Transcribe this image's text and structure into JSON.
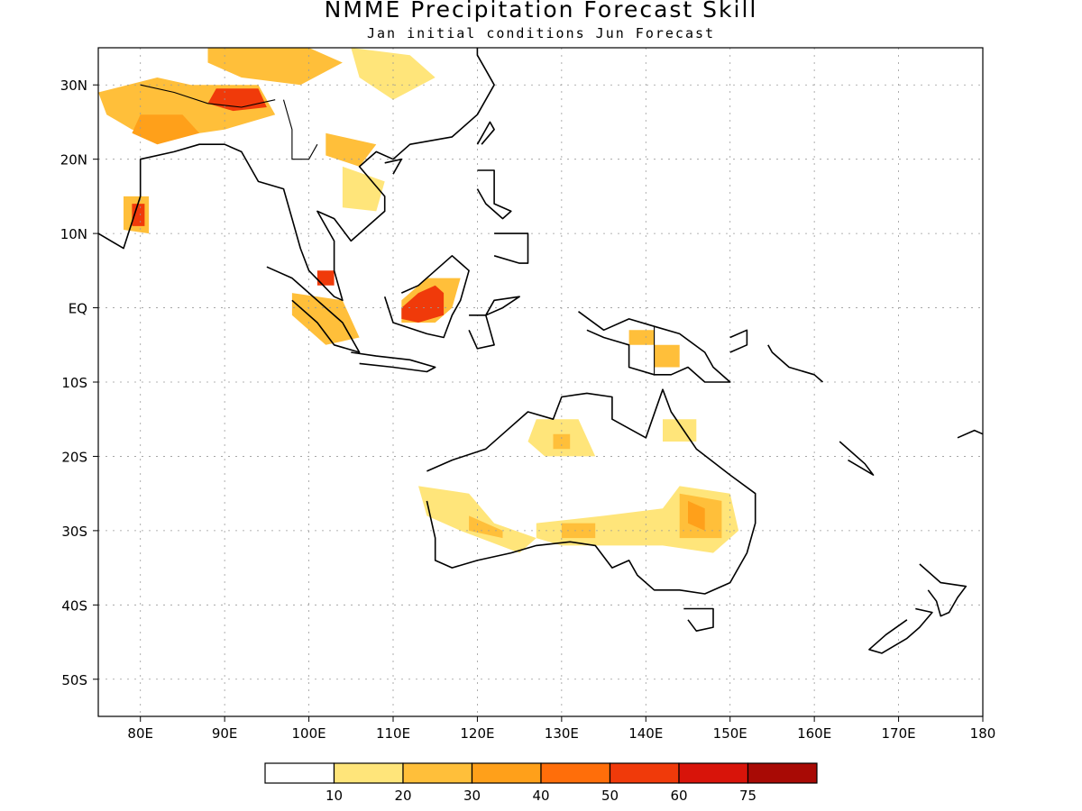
{
  "title": "NMME Precipitation Forecast Skill",
  "subtitle": "Jan initial conditions  Jun Forecast",
  "map": {
    "lon_range": [
      75,
      180
    ],
    "lat_range": [
      -55,
      35
    ],
    "lon_ticks": [
      {
        "value": 80,
        "label": "80E"
      },
      {
        "value": 90,
        "label": "90E"
      },
      {
        "value": 100,
        "label": "100E"
      },
      {
        "value": 110,
        "label": "110E"
      },
      {
        "value": 120,
        "label": "120E"
      },
      {
        "value": 130,
        "label": "130E"
      },
      {
        "value": 140,
        "label": "140E"
      },
      {
        "value": 150,
        "label": "150E"
      },
      {
        "value": 160,
        "label": "160E"
      },
      {
        "value": 170,
        "label": "170E"
      },
      {
        "value": 180,
        "label": "180"
      }
    ],
    "lat_ticks": [
      {
        "value": 30,
        "label": "30N"
      },
      {
        "value": 20,
        "label": "20N"
      },
      {
        "value": 10,
        "label": "10N"
      },
      {
        "value": 0,
        "label": "EQ"
      },
      {
        "value": -10,
        "label": "10S"
      },
      {
        "value": -20,
        "label": "20S"
      },
      {
        "value": -30,
        "label": "30S"
      },
      {
        "value": -40,
        "label": "40S"
      },
      {
        "value": -50,
        "label": "50S"
      }
    ],
    "grid": true
  },
  "colorbar": {
    "colors": [
      "#ffffff",
      "#ffe57a",
      "#ffbf3a",
      "#ffa01a",
      "#ff6e0a",
      "#f03a0a",
      "#d8140a",
      "#a80a05"
    ],
    "labels": [
      "10",
      "20",
      "30",
      "40",
      "50",
      "60",
      "75"
    ]
  },
  "skill_regions": [
    {
      "level": 2,
      "points": [
        [
          75,
          29
        ],
        [
          82,
          31
        ],
        [
          86,
          30
        ],
        [
          94,
          30
        ],
        [
          96,
          26
        ],
        [
          90,
          24
        ],
        [
          84,
          23
        ],
        [
          79,
          24
        ],
        [
          76,
          26
        ]
      ]
    },
    {
      "level": 3,
      "points": [
        [
          80,
          26
        ],
        [
          85,
          26
        ],
        [
          87,
          23.5
        ],
        [
          82,
          22
        ],
        [
          79,
          23.5
        ]
      ]
    },
    {
      "level": 5,
      "points": [
        [
          89,
          29.5
        ],
        [
          94,
          29.5
        ],
        [
          95,
          27
        ],
        [
          91,
          26.5
        ],
        [
          88,
          27.5
        ]
      ]
    },
    {
      "level": 2,
      "points": [
        [
          88,
          35
        ],
        [
          100,
          35
        ],
        [
          104,
          33
        ],
        [
          99,
          30
        ],
        [
          92,
          31
        ],
        [
          88,
          33
        ]
      ]
    },
    {
      "level": 1,
      "points": [
        [
          105,
          35
        ],
        [
          112,
          34
        ],
        [
          115,
          31
        ],
        [
          110,
          28
        ],
        [
          106,
          31
        ]
      ]
    },
    {
      "level": 2,
      "points": [
        [
          102,
          23.5
        ],
        [
          108,
          22
        ],
        [
          106,
          19
        ],
        [
          102,
          20.5
        ]
      ]
    },
    {
      "level": 1,
      "points": [
        [
          104,
          19
        ],
        [
          109,
          17
        ],
        [
          108,
          13
        ],
        [
          104,
          13.5
        ]
      ]
    },
    {
      "level": 2,
      "points": [
        [
          78,
          15
        ],
        [
          81,
          15
        ],
        [
          81,
          10
        ],
        [
          78,
          10.5
        ]
      ]
    },
    {
      "level": 5,
      "points": [
        [
          79,
          14
        ],
        [
          80.5,
          14
        ],
        [
          80.5,
          11
        ],
        [
          79,
          11
        ]
      ]
    },
    {
      "level": 5,
      "points": [
        [
          101,
          5
        ],
        [
          103,
          5
        ],
        [
          103,
          3
        ],
        [
          101,
          3
        ]
      ]
    },
    {
      "level": 2,
      "points": [
        [
          98,
          2
        ],
        [
          104,
          1
        ],
        [
          106,
          -4
        ],
        [
          102,
          -5
        ],
        [
          98,
          -1
        ]
      ]
    },
    {
      "level": 2,
      "points": [
        [
          111,
          1
        ],
        [
          114,
          4
        ],
        [
          118,
          4
        ],
        [
          117,
          0
        ],
        [
          115,
          -2
        ],
        [
          111,
          -2
        ]
      ]
    },
    {
      "level": 5,
      "points": [
        [
          111,
          0
        ],
        [
          113,
          2
        ],
        [
          115,
          3
        ],
        [
          116,
          2
        ],
        [
          116,
          -1
        ],
        [
          113,
          -2
        ],
        [
          111,
          -1.5
        ]
      ]
    },
    {
      "level": 2,
      "points": [
        [
          138,
          -3
        ],
        [
          141,
          -3
        ],
        [
          141,
          -5
        ],
        [
          138,
          -5
        ]
      ]
    },
    {
      "level": 2,
      "points": [
        [
          141,
          -5
        ],
        [
          144,
          -5
        ],
        [
          144,
          -8
        ],
        [
          141,
          -8
        ]
      ]
    },
    {
      "level": 1,
      "points": [
        [
          127,
          -15
        ],
        [
          132,
          -15
        ],
        [
          134,
          -20
        ],
        [
          128,
          -20
        ],
        [
          126,
          -18
        ]
      ]
    },
    {
      "level": 2,
      "points": [
        [
          129,
          -17
        ],
        [
          131,
          -17
        ],
        [
          131,
          -19
        ],
        [
          129,
          -19
        ]
      ]
    },
    {
      "level": 1,
      "points": [
        [
          142,
          -15
        ],
        [
          146,
          -15
        ],
        [
          146,
          -18
        ],
        [
          142,
          -18
        ]
      ]
    },
    {
      "level": 1,
      "points": [
        [
          113,
          -24
        ],
        [
          119,
          -25
        ],
        [
          122,
          -29
        ],
        [
          127,
          -31
        ],
        [
          125,
          -33
        ],
        [
          118,
          -30
        ],
        [
          114,
          -28
        ]
      ]
    },
    {
      "level": 2,
      "points": [
        [
          119,
          -28
        ],
        [
          123,
          -30
        ],
        [
          123,
          -31
        ],
        [
          119,
          -30
        ]
      ]
    },
    {
      "level": 1,
      "points": [
        [
          127,
          -29
        ],
        [
          135,
          -28
        ],
        [
          142,
          -27
        ],
        [
          144,
          -24
        ],
        [
          150,
          -25
        ],
        [
          151,
          -30
        ],
        [
          148,
          -33
        ],
        [
          142,
          -32
        ],
        [
          136,
          -32
        ],
        [
          130,
          -32
        ],
        [
          127,
          -31
        ]
      ]
    },
    {
      "level": 2,
      "points": [
        [
          130,
          -29
        ],
        [
          134,
          -29
        ],
        [
          134,
          -31
        ],
        [
          130,
          -31
        ]
      ]
    },
    {
      "level": 2,
      "points": [
        [
          144,
          -25
        ],
        [
          149,
          -26
        ],
        [
          149,
          -31
        ],
        [
          144,
          -31
        ]
      ]
    },
    {
      "level": 3,
      "points": [
        [
          145,
          -26
        ],
        [
          147,
          -27
        ],
        [
          147,
          -30
        ],
        [
          145,
          -29
        ]
      ]
    }
  ],
  "coastlines": [
    [
      [
        75,
        10
      ],
      [
        78,
        8
      ],
      [
        80,
        15
      ],
      [
        80,
        20
      ],
      [
        84,
        21
      ],
      [
        87,
        22
      ],
      [
        88,
        22
      ],
      [
        90,
        22
      ],
      [
        92,
        21
      ],
      [
        94,
        17
      ],
      [
        97,
        16
      ],
      [
        98,
        12
      ],
      [
        99,
        8
      ],
      [
        100,
        5
      ],
      [
        103,
        1.5
      ],
      [
        104,
        1
      ],
      [
        103,
        5
      ],
      [
        103,
        9
      ],
      [
        101,
        13
      ],
      [
        103,
        12
      ],
      [
        105,
        9
      ],
      [
        107,
        11
      ],
      [
        109,
        13
      ],
      [
        109,
        15
      ],
      [
        106,
        19
      ],
      [
        108,
        21
      ],
      [
        110,
        20
      ],
      [
        112,
        22
      ],
      [
        117,
        23
      ],
      [
        120,
        26
      ],
      [
        122,
        30
      ],
      [
        121,
        32
      ],
      [
        120,
        34
      ],
      [
        120,
        35
      ]
    ],
    [
      [
        95,
        5.5
      ],
      [
        98,
        4
      ],
      [
        102,
        0
      ],
      [
        104,
        -2
      ],
      [
        106,
        -6
      ],
      [
        103,
        -5
      ],
      [
        101,
        -2
      ],
      [
        98,
        1
      ]
    ],
    [
      [
        105,
        -6
      ],
      [
        108,
        -6.5
      ],
      [
        112,
        -7
      ],
      [
        115,
        -8
      ],
      [
        114,
        -8.6
      ],
      [
        110,
        -8
      ],
      [
        106,
        -7.5
      ]
    ],
    [
      [
        109,
        1.5
      ],
      [
        110,
        -2
      ],
      [
        114,
        -3.5
      ],
      [
        116,
        -4
      ],
      [
        117,
        -1
      ],
      [
        118,
        1
      ],
      [
        119,
        5
      ],
      [
        117,
        7
      ],
      [
        115,
        5
      ],
      [
        113,
        3
      ],
      [
        111,
        2
      ]
    ],
    [
      [
        119,
        -1
      ],
      [
        121,
        -1
      ],
      [
        122,
        1
      ],
      [
        125,
        1.5
      ],
      [
        123,
        0
      ],
      [
        121,
        -1
      ],
      [
        122,
        -5
      ],
      [
        120,
        -5.5
      ],
      [
        119,
        -3
      ]
    ],
    [
      [
        120,
        18.5
      ],
      [
        122,
        18.5
      ],
      [
        122,
        14
      ],
      [
        124,
        13
      ],
      [
        123,
        12
      ],
      [
        121,
        14
      ],
      [
        120,
        16
      ]
    ],
    [
      [
        122,
        10
      ],
      [
        126,
        10
      ],
      [
        126,
        6
      ],
      [
        125,
        6
      ],
      [
        122,
        7
      ]
    ],
    [
      [
        120,
        22
      ],
      [
        121.5,
        25
      ],
      [
        122,
        24
      ],
      [
        120.5,
        22
      ]
    ],
    [
      [
        110,
        18
      ],
      [
        111,
        20
      ],
      [
        109,
        19.5
      ]
    ],
    [
      [
        132,
        -0.5
      ],
      [
        135,
        -3
      ],
      [
        138,
        -1.5
      ],
      [
        141,
        -2.5
      ],
      [
        144,
        -3.5
      ],
      [
        147,
        -6
      ],
      [
        148,
        -8
      ],
      [
        150,
        -10
      ],
      [
        147,
        -10
      ],
      [
        145,
        -8
      ],
      [
        143,
        -9
      ],
      [
        141,
        -9
      ],
      [
        138,
        -8
      ],
      [
        138,
        -5
      ],
      [
        135,
        -4
      ],
      [
        133,
        -3
      ]
    ],
    [
      [
        150,
        -4
      ],
      [
        152,
        -3
      ],
      [
        152,
        -5
      ],
      [
        150,
        -6
      ]
    ],
    [
      [
        114,
        -22
      ],
      [
        117,
        -20.5
      ],
      [
        121,
        -19
      ],
      [
        123,
        -17
      ],
      [
        126,
        -14
      ],
      [
        129,
        -15
      ],
      [
        130,
        -12
      ],
      [
        133,
        -11.5
      ],
      [
        136,
        -12
      ],
      [
        136,
        -15
      ],
      [
        140,
        -17.5
      ],
      [
        142,
        -11
      ],
      [
        143,
        -14
      ],
      [
        146,
        -19
      ],
      [
        150,
        -22.5
      ],
      [
        153,
        -25
      ],
      [
        153,
        -29
      ],
      [
        152,
        -33
      ],
      [
        150,
        -37
      ],
      [
        147,
        -38.5
      ],
      [
        144,
        -38
      ],
      [
        141,
        -38
      ],
      [
        139,
        -36
      ],
      [
        138,
        -34
      ],
      [
        136,
        -35
      ],
      [
        134,
        -32
      ],
      [
        131,
        -31.5
      ],
      [
        127,
        -32
      ],
      [
        124,
        -33
      ],
      [
        120,
        -34
      ],
      [
        117,
        -35
      ],
      [
        115,
        -34
      ],
      [
        115,
        -31
      ],
      [
        114,
        -26
      ]
    ],
    [
      [
        144.5,
        -40.5
      ],
      [
        148,
        -40.5
      ],
      [
        148,
        -43
      ],
      [
        146,
        -43.5
      ],
      [
        145,
        -42
      ]
    ],
    [
      [
        172.5,
        -34.5
      ],
      [
        175,
        -37
      ],
      [
        178,
        -37.5
      ],
      [
        177,
        -39
      ],
      [
        176,
        -41
      ],
      [
        175,
        -41.5
      ],
      [
        174.5,
        -39.5
      ],
      [
        173.5,
        -38
      ]
    ],
    [
      [
        172,
        -40.5
      ],
      [
        174,
        -41
      ],
      [
        172.5,
        -43
      ],
      [
        171,
        -44.5
      ],
      [
        168,
        -46.5
      ],
      [
        166.5,
        -46
      ],
      [
        168.5,
        -44
      ],
      [
        171,
        -42
      ]
    ],
    [
      [
        163,
        -18
      ],
      [
        166,
        -21
      ],
      [
        167,
        -22.5
      ],
      [
        164,
        -20.5
      ]
    ],
    [
      [
        177,
        -17.5
      ],
      [
        179,
        -16.5
      ],
      [
        180,
        -17
      ]
    ],
    [
      [
        154.5,
        -5
      ],
      [
        155,
        -6
      ],
      [
        157,
        -8
      ],
      [
        160,
        -9
      ],
      [
        161,
        -10
      ]
    ]
  ],
  "country_borders": [
    [
      [
        80,
        30
      ],
      [
        84,
        29
      ],
      [
        88,
        27.5
      ],
      [
        92,
        27
      ],
      [
        96,
        28
      ]
    ],
    [
      [
        141,
        -2.6
      ],
      [
        141,
        -9.1
      ]
    ],
    [
      [
        97,
        28
      ],
      [
        98,
        24
      ],
      [
        98,
        20
      ],
      [
        100,
        20
      ],
      [
        101,
        22
      ]
    ]
  ]
}
